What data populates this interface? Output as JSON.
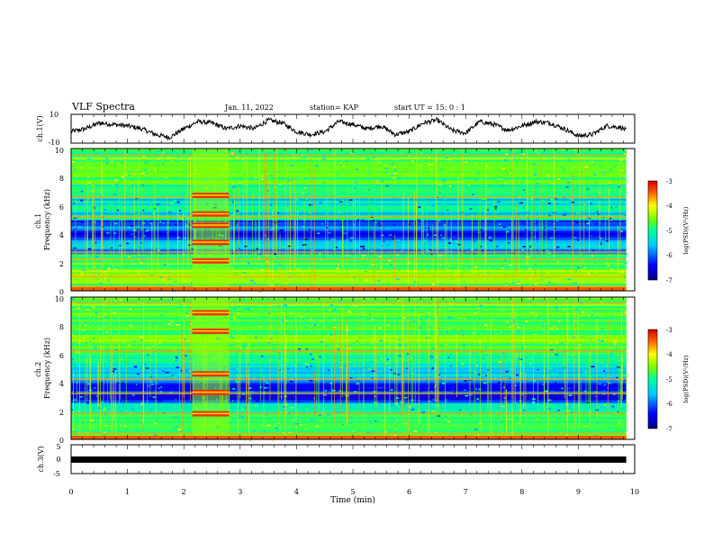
{
  "header": {
    "title": "VLF Spectra",
    "date": "Jan. 11, 2022",
    "station": "station= KAP",
    "start": "start  UT =   15: 0  : 1"
  },
  "colors": {
    "trace": "#000000",
    "colormap": [
      "#00007f",
      "#0000ff",
      "#00c8ff",
      "#00ff96",
      "#78ff00",
      "#ffff00",
      "#ff6400",
      "#d20000"
    ]
  },
  "chart_data": [
    {
      "type": "line",
      "ylabel": "ch.1(V)",
      "ylim": [
        -10,
        10
      ],
      "yticks": [
        "10",
        "-10"
      ],
      "xlim": [
        0,
        9.85
      ],
      "description_series": "waveform",
      "x": [
        0,
        0.25,
        0.5,
        0.75,
        1.0,
        1.25,
        1.5,
        1.75,
        2.0,
        2.25,
        2.5,
        2.75,
        3.0,
        3.25,
        3.5,
        3.75,
        4.0,
        4.25,
        4.5,
        4.75,
        5.0,
        5.25,
        5.5,
        5.75,
        6.0,
        6.25,
        6.5,
        6.75,
        7.0,
        7.25,
        7.5,
        7.75,
        8.0,
        8.25,
        8.5,
        8.75,
        9.0,
        9.25,
        9.5,
        9.75,
        9.85
      ],
      "y": [
        -2,
        0,
        4,
        3,
        2,
        0,
        -4,
        -6,
        0,
        5,
        4,
        0,
        2,
        0,
        6,
        4,
        -2,
        -4,
        -2,
        5,
        3,
        0,
        2,
        -4,
        -2,
        4,
        6,
        -1,
        -3,
        5,
        3,
        -1,
        2,
        5,
        4,
        0,
        -5,
        -4,
        2,
        1,
        -1
      ]
    },
    {
      "type": "heatmap",
      "ylabel": "ch.1\nFrequency (kHz)",
      "ylim": [
        0,
        10
      ],
      "yticks": [
        "0",
        "2",
        "4",
        "6",
        "8",
        "10"
      ],
      "colorbar_label": "log(PSD)(V²/Hz)",
      "colorbar_range": [
        -7,
        -3
      ],
      "colorbar_ticks": [
        "-3",
        "-4",
        "-5",
        "-6",
        "-7"
      ],
      "bands": [
        {
          "from": 0,
          "to": 1.5,
          "level": -4.8
        },
        {
          "from": 1.5,
          "to": 2.6,
          "level": -5.0
        },
        {
          "from": 2.6,
          "to": 3.6,
          "level": -6.0
        },
        {
          "from": 3.6,
          "to": 5.0,
          "level": -6.3
        },
        {
          "from": 5.0,
          "to": 6.5,
          "level": -5.6
        },
        {
          "from": 6.5,
          "to": 7.5,
          "level": -5.2
        },
        {
          "from": 7.5,
          "to": 10,
          "level": -4.9
        }
      ],
      "lines_khz": [
        0.3,
        1.0,
        2.2,
        2.7,
        5.2,
        6.6,
        9.5
      ],
      "burst": {
        "t0": 2.15,
        "t1": 2.8,
        "freqs_khz": [
          2.1,
          3.4,
          4.6,
          5.4,
          6.7
        ]
      }
    },
    {
      "type": "heatmap",
      "ylabel": "ch.2\nFrequency (kHz)",
      "ylim": [
        0,
        10
      ],
      "yticks": [
        "0",
        "2",
        "4",
        "6",
        "8",
        "10"
      ],
      "colorbar_label": "log(PSD)(V²/Hz)",
      "colorbar_range": [
        -7,
        -3
      ],
      "colorbar_ticks": [
        "-3",
        "-4",
        "-5",
        "-6",
        "-7"
      ],
      "bands": [
        {
          "from": 0,
          "to": 1.6,
          "level": -5.0
        },
        {
          "from": 1.6,
          "to": 2.6,
          "level": -5.3
        },
        {
          "from": 2.6,
          "to": 4.0,
          "level": -6.2
        },
        {
          "from": 4.0,
          "to": 5.2,
          "level": -5.8
        },
        {
          "from": 5.2,
          "to": 6.4,
          "level": -5.3
        },
        {
          "from": 6.4,
          "to": 10,
          "level": -4.9
        }
      ],
      "lines_khz": [
        0.4,
        1.8,
        3.2,
        4.2,
        6.2,
        9.6
      ],
      "burst": {
        "t0": 2.15,
        "t1": 2.8,
        "freqs_khz": [
          1.8,
          3.3,
          4.6,
          7.6,
          8.9
        ]
      }
    },
    {
      "type": "line",
      "ylabel": "ch.3(V)",
      "ylim": [
        -5,
        5
      ],
      "yticks": [
        "5",
        "0",
        "-5"
      ],
      "x": [
        0,
        9.85
      ],
      "y": [
        0,
        0
      ]
    }
  ],
  "xaxis": {
    "label": "Time (min)",
    "ticks": [
      "0",
      "1",
      "2",
      "3",
      "4",
      "5",
      "6",
      "7",
      "8",
      "9",
      "10"
    ],
    "range": [
      0,
      10
    ]
  }
}
